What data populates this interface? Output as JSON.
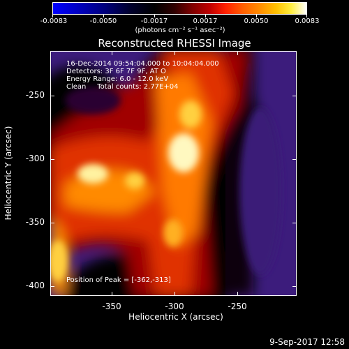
{
  "colorbar": {
    "tick_labels": [
      "-0.0083",
      "-0.0050",
      "-0.0017",
      "0.0017",
      "0.0050",
      "0.0083"
    ],
    "unit": "(photons cm⁻² s⁻¹ asec⁻²)"
  },
  "title": "Reconstructed RHESSI Image",
  "info": {
    "line1": "16-Dec-2014 09:54:04.000 to 10:04:04.000",
    "line2": "Detectors: 3F 6F 7F 9F, AT O",
    "line3": "Energy Range: 6.0 - 12.0 keV",
    "line4": "Clean     Total counts: 2.77E+04",
    "peak": "Position of Peak = [-362,-313]"
  },
  "axes": {
    "xlabel": "Heliocentric X (arcsec)",
    "ylabel": "Heliocentric Y (arcsec)",
    "xticks": [
      "-350",
      "-300",
      "-250"
    ],
    "yticks": [
      "-250",
      "-300",
      "-350",
      "-400"
    ]
  },
  "footer": {
    "date": "9-Sep-2017 12:58"
  },
  "colors": {
    "background": "#000000",
    "foreground": "#ffffff"
  }
}
